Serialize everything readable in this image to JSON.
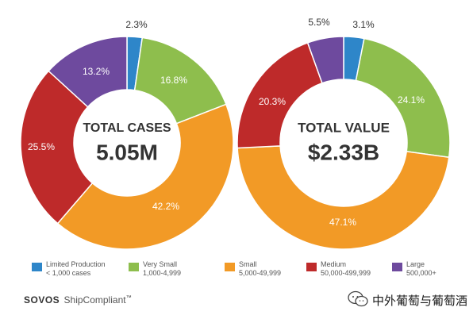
{
  "chart_data": [
    {
      "type": "pie",
      "style": "donut",
      "center_title": "TOTAL CASES",
      "center_value": "5.05M",
      "categories": [
        "Limited Production",
        "Very Small",
        "Small",
        "Medium",
        "Large"
      ],
      "values": [
        2.3,
        16.8,
        42.2,
        25.5,
        13.2
      ],
      "value_labels": [
        "2.3%",
        "16.8%",
        "42.2%",
        "25.5%",
        "13.2%"
      ]
    },
    {
      "type": "pie",
      "style": "donut",
      "center_title": "TOTAL VALUE",
      "center_value": "$2.33B",
      "categories": [
        "Limited Production",
        "Very Small",
        "Small",
        "Medium",
        "Large"
      ],
      "values": [
        3.1,
        24.1,
        47.1,
        20.3,
        5.5
      ],
      "value_labels": [
        "3.1%",
        "24.1%",
        "47.1%",
        "20.3%",
        "5.5%"
      ]
    }
  ],
  "colors": [
    "#2e86c9",
    "#8ebe4d",
    "#f29a26",
    "#be2a2a",
    "#6e4a9e"
  ],
  "legend": [
    {
      "name": "Limited Production",
      "range": "< 1,000 cases"
    },
    {
      "name": "Very Small",
      "range": "1,000-4,999"
    },
    {
      "name": "Small",
      "range": "5,000-49,999"
    },
    {
      "name": "Medium",
      "range": "50,000-499,999"
    },
    {
      "name": "Large",
      "range": "500,000+"
    }
  ],
  "brand": {
    "logo": "SOVOS",
    "product": "ShipCompliant",
    "tm": "™"
  },
  "watermark": {
    "text": "中外葡萄与葡萄酒",
    "icon": "wechat-icon"
  }
}
